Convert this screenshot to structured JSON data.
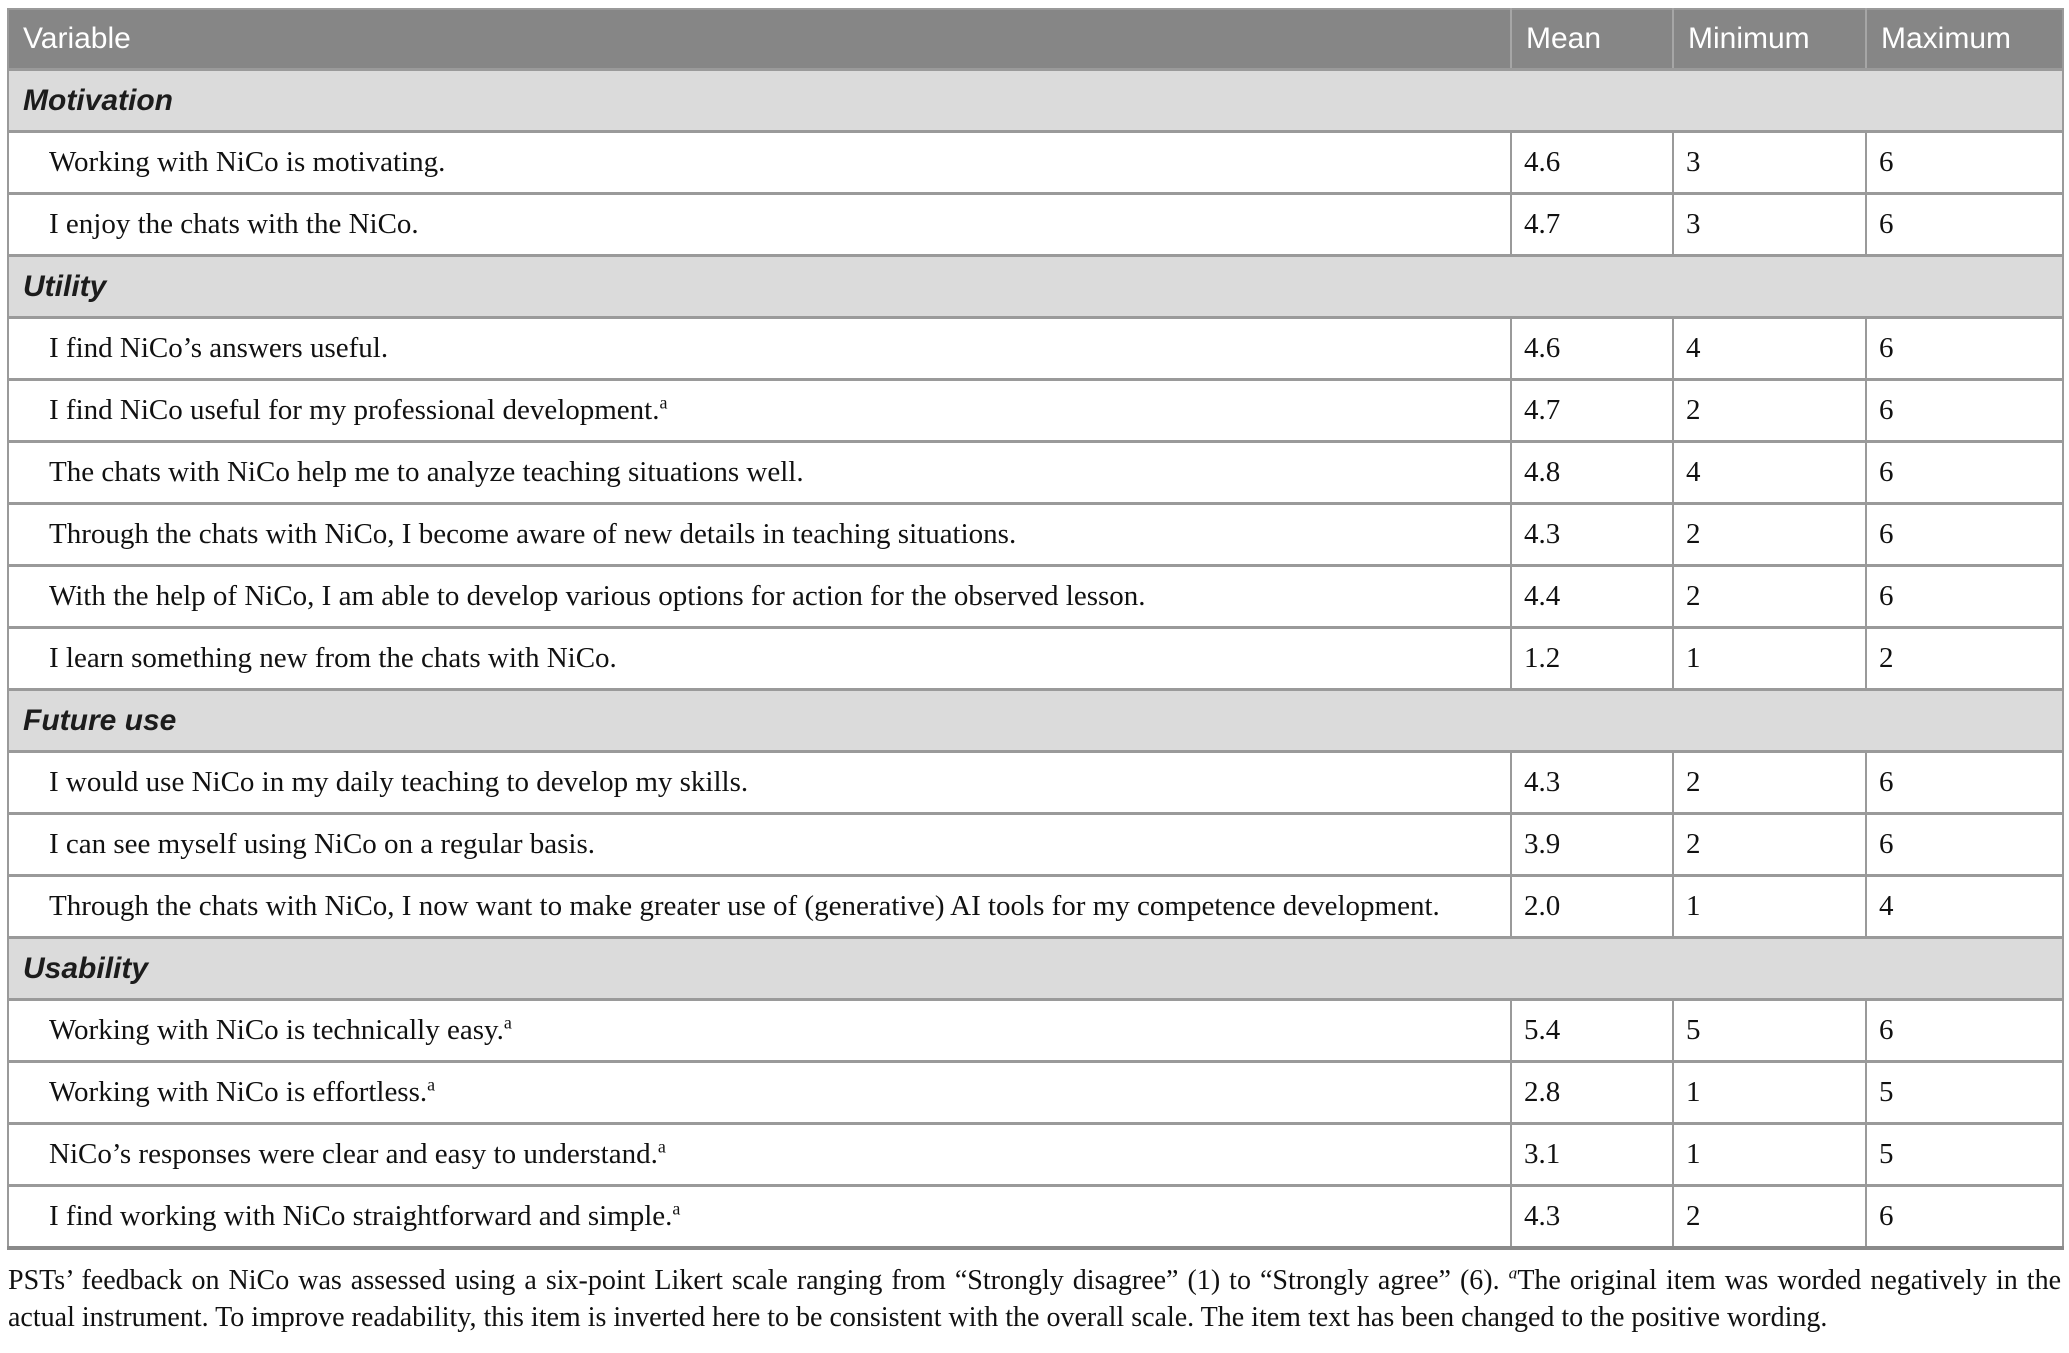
{
  "table": {
    "columns": [
      "Variable",
      "Mean",
      "Minimum",
      "Maximum"
    ],
    "sections": [
      {
        "title": "Motivation",
        "rows": [
          {
            "text": "Working with NiCo is motivating.",
            "sup": false,
            "mean": "4.6",
            "min": "3",
            "max": "6"
          },
          {
            "text": "I enjoy the chats with the NiCo.",
            "sup": false,
            "mean": "4.7",
            "min": "3",
            "max": "6"
          }
        ]
      },
      {
        "title": "Utility",
        "rows": [
          {
            "text": "I find NiCo’s answers useful.",
            "sup": false,
            "mean": "4.6",
            "min": "4",
            "max": "6"
          },
          {
            "text": "I find NiCo useful for my professional development.",
            "sup": true,
            "mean": "4.7",
            "min": "2",
            "max": "6"
          },
          {
            "text": "The chats with NiCo help me to analyze teaching situations well.",
            "sup": false,
            "mean": "4.8",
            "min": "4",
            "max": "6"
          },
          {
            "text": "Through the chats with NiCo, I become aware of new details in teaching situations.",
            "sup": false,
            "mean": "4.3",
            "min": "2",
            "max": "6"
          },
          {
            "text": "With the help of NiCo, I am able to develop various options for action for the observed lesson.",
            "sup": false,
            "mean": "4.4",
            "min": "2",
            "max": "6"
          },
          {
            "text": "I learn something new from the chats with NiCo.",
            "sup": false,
            "mean": "1.2",
            "min": "1",
            "max": "2"
          }
        ]
      },
      {
        "title": "Future use",
        "rows": [
          {
            "text": "I would use NiCo in my daily teaching to develop my skills.",
            "sup": false,
            "mean": "4.3",
            "min": "2",
            "max": "6"
          },
          {
            "text": "I can see myself using NiCo on a regular basis.",
            "sup": false,
            "mean": "3.9",
            "min": "2",
            "max": "6"
          },
          {
            "text": "Through the chats with NiCo, I now want to make greater use of (generative) AI tools for my competence development.",
            "sup": false,
            "mean": "2.0",
            "min": "1",
            "max": "4"
          }
        ]
      },
      {
        "title": "Usability",
        "rows": [
          {
            "text": "Working with NiCo is technically easy.",
            "sup": true,
            "mean": "5.4",
            "min": "5",
            "max": "6"
          },
          {
            "text": "Working with NiCo is effortless.",
            "sup": true,
            "mean": "2.8",
            "min": "1",
            "max": "5"
          },
          {
            "text": "NiCo’s responses were clear and easy to understand.",
            "sup": true,
            "mean": "3.1",
            "min": "1",
            "max": "5"
          },
          {
            "text": "I find working with NiCo straightforward and simple.",
            "sup": true,
            "mean": "4.3",
            "min": "2",
            "max": "6"
          }
        ]
      }
    ]
  },
  "footnote": {
    "marker": "a",
    "text_before": "PSTs’ feedback on NiCo was assessed using a six-point Likert scale ranging from “Strongly disagree” (1) to “Strongly agree” (6). ",
    "text_after": "The original item was worded negatively in the actual instrument. To improve readability, this item is inverted here to be consistent with the overall scale. The item text has been changed to the positive wording."
  },
  "colors": {
    "header_bg": "#868686",
    "section_bg": "#dbdbdb",
    "border": "#9a9a9a"
  }
}
